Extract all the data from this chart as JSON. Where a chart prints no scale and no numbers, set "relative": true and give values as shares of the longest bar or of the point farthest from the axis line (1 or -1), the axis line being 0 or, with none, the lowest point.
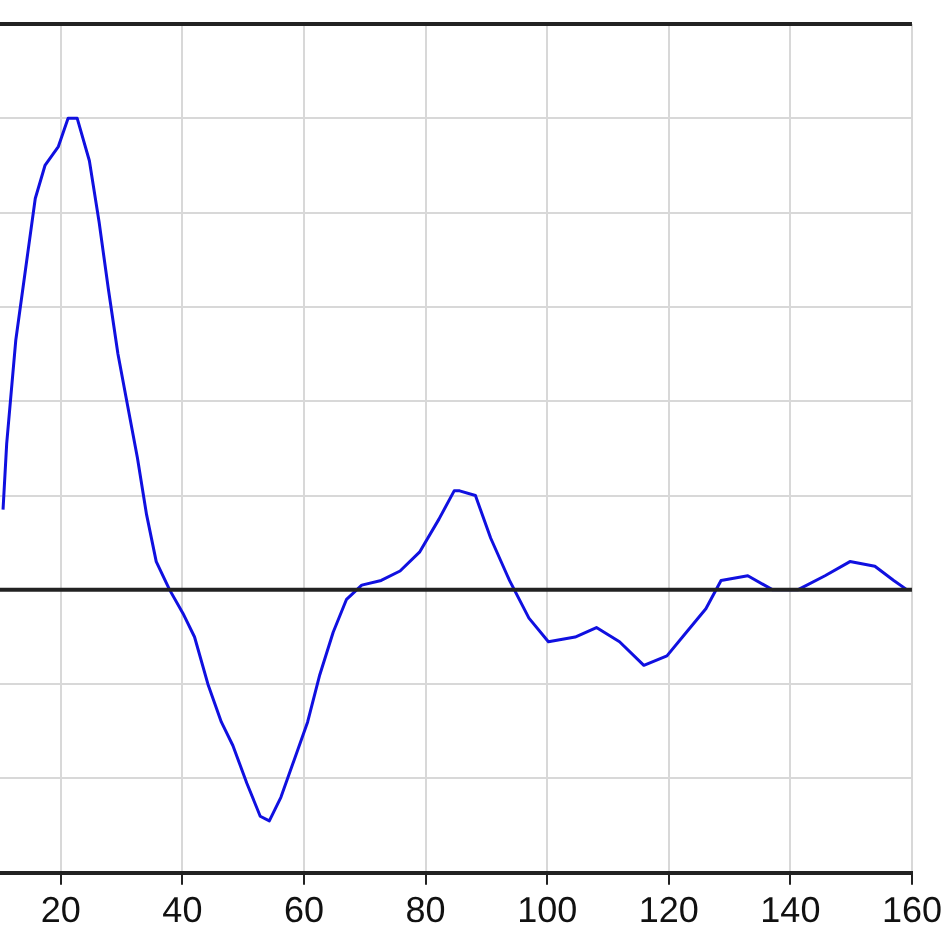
{
  "chart_data": {
    "type": "line",
    "relative": true,
    "xlim": [
      10,
      160
    ],
    "xticks": [
      20,
      40,
      60,
      80,
      100,
      120,
      140,
      160
    ],
    "grid": true,
    "legend": false,
    "marker": "none",
    "line_style": "solid",
    "series": [
      {
        "color": "#1010e0",
        "x": [
          10.5,
          11.1,
          12.6,
          14.2,
          15.8,
          17.4,
          19.6,
          21.2,
          22.7,
          24.7,
          26.3,
          27.8,
          29.4,
          31.0,
          32.6,
          34.1,
          35.7,
          37.9,
          40.1,
          42.0,
          44.2,
          46.4,
          48.3,
          50.6,
          52.8,
          54.3,
          56.2,
          58.4,
          60.6,
          62.6,
          64.8,
          67.0,
          69.5,
          72.7,
          75.8,
          79.0,
          82.2,
          84.7,
          85.6,
          88.2,
          90.7,
          93.8,
          97.0,
          100.2,
          104.6,
          108.1,
          111.9,
          115.9,
          119.7,
          122.9,
          126.1,
          128.6,
          133.0,
          137.1,
          141.2,
          145.7,
          149.8,
          153.9,
          157.0,
          159.2
        ],
        "values": [
          0.17,
          0.31,
          0.53,
          0.68,
          0.83,
          0.9,
          0.94,
          1,
          1,
          0.91,
          0.78,
          0.64,
          0.5,
          0.39,
          0.28,
          0.16,
          0.06,
          0,
          -0.05,
          -0.1,
          -0.2,
          -0.28,
          -0.33,
          -0.41,
          -0.48,
          -0.49,
          -0.44,
          -0.36,
          -0.28,
          -0.18,
          -0.09,
          -0.02,
          0.01,
          0.02,
          0.04,
          0.08,
          0.15,
          0.21,
          0.21,
          0.2,
          0.11,
          0.02,
          -0.06,
          -0.11,
          -0.1,
          -0.08,
          -0.11,
          -0.16,
          -0.14,
          -0.09,
          -0.04,
          0.02,
          0.03,
          0,
          0,
          0.03,
          0.06,
          0.05,
          0.02,
          0
        ]
      }
    ]
  }
}
